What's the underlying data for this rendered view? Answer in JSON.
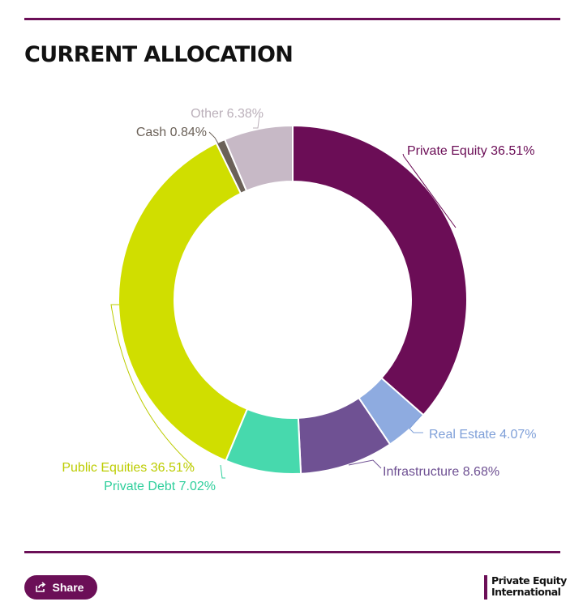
{
  "header": {
    "title": "CURRENT ALLOCATION"
  },
  "chart_data": {
    "type": "pie",
    "donut": true,
    "title": "CURRENT ALLOCATION",
    "slices": [
      {
        "label": "Private Equity",
        "value": 36.51,
        "display": "Private Equity 36.51%",
        "color": "#6b0d56"
      },
      {
        "label": "Real Estate",
        "value": 4.07,
        "display": "Real Estate 4.07%",
        "color": "#8eabe0"
      },
      {
        "label": "Infrastructure",
        "value": 8.68,
        "display": "Infrastructure 8.68%",
        "color": "#6f5193"
      },
      {
        "label": "Private Debt",
        "value": 7.02,
        "display": "Private Debt 7.02%",
        "color": "#47d9ad"
      },
      {
        "label": "Public Equities",
        "value": 36.51,
        "display": "Public Equities 36.51%",
        "color": "#d0de00"
      },
      {
        "label": "Cash",
        "value": 0.84,
        "display": "Cash 0.84%",
        "color": "#6b6158"
      },
      {
        "label": "Other",
        "value": 6.38,
        "display": "Other 6.38%",
        "color": "#c7b9c6"
      }
    ],
    "label_colors": {
      "Private Equity": "#6b0d56",
      "Real Estate": "#7e9fd8",
      "Infrastructure": "#6f5193",
      "Private Debt": "#2fcf9c",
      "Public Equities": "#bccc00",
      "Cash": "#6b6158",
      "Other": "#bbb0ba"
    }
  },
  "footer": {
    "share_label": "Share",
    "brand_line1": "Private Equity",
    "brand_line2": "International"
  }
}
